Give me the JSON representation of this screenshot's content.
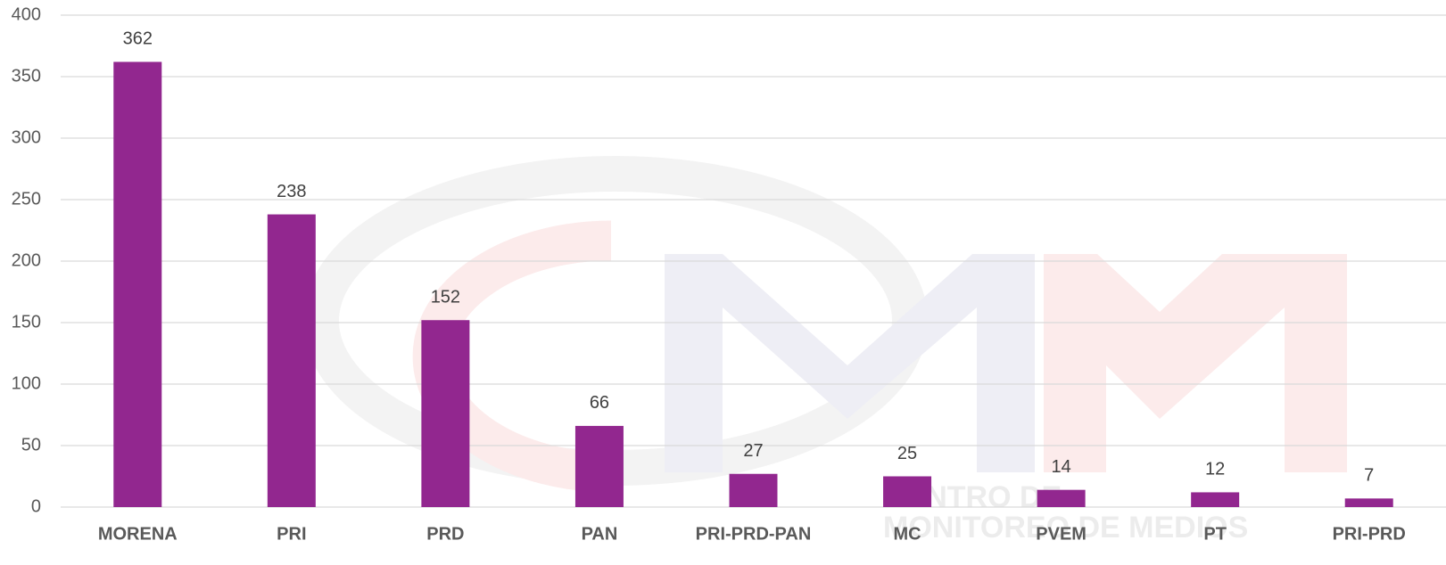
{
  "chart_data": {
    "type": "bar",
    "categories": [
      "MORENA",
      "PRI",
      "PRD",
      "PAN",
      "PRI-PRD-PAN",
      "MC",
      "PVEM",
      "PT",
      "PRI-PRD"
    ],
    "values": [
      362,
      238,
      152,
      66,
      27,
      25,
      14,
      12,
      7
    ],
    "color": "#92278f",
    "ylim": [
      0,
      400
    ],
    "yticks": [
      0,
      50,
      100,
      150,
      200,
      250,
      300,
      350,
      400
    ],
    "grid": true,
    "watermark": [
      "CENTRO DE",
      "MONITOREO DE MEDIOS"
    ]
  }
}
